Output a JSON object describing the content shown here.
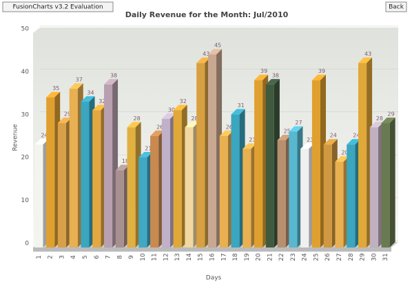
{
  "evaluation_button": "FusionCharts v3.2 Evaluation",
  "back_button": "Back",
  "chart_data": {
    "type": "bar3d",
    "title": "Daily Revenue for the Month: Jul/2010",
    "x_label": "Days",
    "y_label": "Revenue",
    "categories": [
      "1",
      "2",
      "3",
      "4",
      "5",
      "6",
      "7",
      "8",
      "9",
      "10",
      "11",
      "12",
      "13",
      "14",
      "15",
      "16",
      "17",
      "18",
      "19",
      "20",
      "21",
      "22",
      "23",
      "24",
      "25",
      "26",
      "27",
      "28",
      "29",
      "30",
      "31"
    ],
    "values": [
      24,
      35,
      29,
      37,
      34,
      32,
      38,
      18,
      28,
      21,
      26,
      30,
      32,
      28,
      43,
      45,
      26,
      31,
      23,
      39,
      38,
      25,
      27,
      23,
      39,
      24,
      20,
      24,
      43,
      28,
      29
    ],
    "colors": [
      "#f4f4ee",
      "#e0a030",
      "#d8a048",
      "#e8b050",
      "#3aa6c0",
      "#e4a840",
      "#b8a0b0",
      "#a89090",
      "#e0b040",
      "#40a8c4",
      "#c88a50",
      "#c0b0c8",
      "#e0a838",
      "#f0d8a0",
      "#d8a040",
      "#c8a890",
      "#e8b050",
      "#3aa6c0",
      "#e8b050",
      "#e0a030",
      "#405a40",
      "#b89070",
      "#58b8d0",
      "#f0f0f0",
      "#e0a030",
      "#d09840",
      "#e8b050",
      "#3aa6c0",
      "#e0a838",
      "#c0b0c0",
      "#6a7a50"
    ],
    "ylim": [
      0,
      50
    ],
    "yticks": [
      0,
      10,
      20,
      30,
      40,
      50
    ],
    "grid": true
  }
}
